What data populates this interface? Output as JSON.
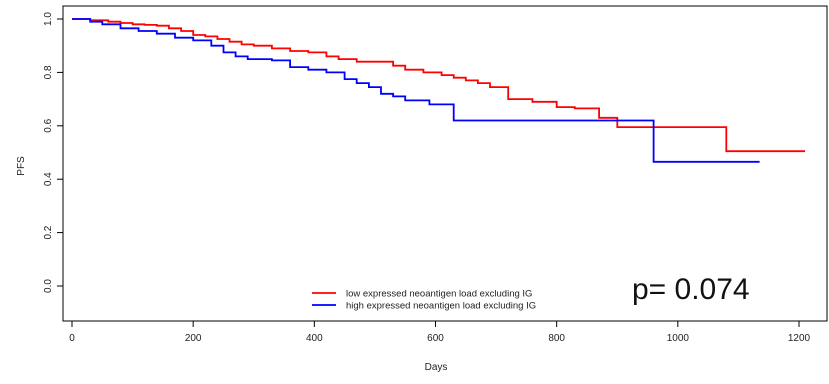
{
  "chart_data": {
    "type": "line",
    "title": "",
    "xlabel": "Days",
    "ylabel": "PFS",
    "xlim": [
      0,
      1230
    ],
    "ylim": [
      -0.03,
      1.03
    ],
    "xticks": [
      0,
      200,
      400,
      600,
      800,
      1000,
      1200
    ],
    "yticks": [
      0.0,
      0.2,
      0.4,
      0.6,
      0.8,
      1.0
    ],
    "xtick_labels": [
      "0",
      "200",
      "400",
      "600",
      "800",
      "1000",
      "1200"
    ],
    "ytick_labels": [
      "0.0",
      "0.2",
      "0.4",
      "0.6",
      "0.8",
      "1.0"
    ],
    "grid": false,
    "legend_position": "bottom-center",
    "annotation": "p= 0.074",
    "series": [
      {
        "name": "low expressed neoantigen load excluding IG",
        "color": "#ff0000",
        "step": true,
        "points": [
          [
            0,
            1.0
          ],
          [
            30,
            0.995
          ],
          [
            60,
            0.99
          ],
          [
            80,
            0.985
          ],
          [
            100,
            0.98
          ],
          [
            120,
            0.978
          ],
          [
            140,
            0.975
          ],
          [
            160,
            0.965
          ],
          [
            180,
            0.955
          ],
          [
            200,
            0.94
          ],
          [
            220,
            0.935
          ],
          [
            240,
            0.925
          ],
          [
            260,
            0.915
          ],
          [
            280,
            0.905
          ],
          [
            300,
            0.9
          ],
          [
            330,
            0.89
          ],
          [
            360,
            0.88
          ],
          [
            390,
            0.875
          ],
          [
            420,
            0.86
          ],
          [
            440,
            0.85
          ],
          [
            470,
            0.84
          ],
          [
            510,
            0.84
          ],
          [
            530,
            0.825
          ],
          [
            550,
            0.81
          ],
          [
            580,
            0.8
          ],
          [
            610,
            0.79
          ],
          [
            630,
            0.78
          ],
          [
            650,
            0.77
          ],
          [
            670,
            0.76
          ],
          [
            690,
            0.745
          ],
          [
            720,
            0.7
          ],
          [
            760,
            0.69
          ],
          [
            800,
            0.67
          ],
          [
            830,
            0.665
          ],
          [
            870,
            0.63
          ],
          [
            900,
            0.595
          ],
          [
            960,
            0.595
          ],
          [
            1000,
            0.595
          ],
          [
            1080,
            0.505
          ],
          [
            1210,
            0.505
          ]
        ]
      },
      {
        "name": "high expressed neoantigen load excluding IG",
        "color": "#0000ff",
        "step": true,
        "points": [
          [
            0,
            1.0
          ],
          [
            30,
            0.99
          ],
          [
            50,
            0.98
          ],
          [
            80,
            0.965
          ],
          [
            110,
            0.955
          ],
          [
            140,
            0.945
          ],
          [
            170,
            0.93
          ],
          [
            200,
            0.92
          ],
          [
            230,
            0.9
          ],
          [
            250,
            0.875
          ],
          [
            270,
            0.86
          ],
          [
            290,
            0.85
          ],
          [
            330,
            0.845
          ],
          [
            360,
            0.82
          ],
          [
            390,
            0.81
          ],
          [
            420,
            0.8
          ],
          [
            450,
            0.775
          ],
          [
            470,
            0.76
          ],
          [
            490,
            0.745
          ],
          [
            510,
            0.72
          ],
          [
            530,
            0.71
          ],
          [
            550,
            0.695
          ],
          [
            590,
            0.68
          ],
          [
            630,
            0.62
          ],
          [
            700,
            0.62
          ],
          [
            800,
            0.62
          ],
          [
            960,
            0.465
          ],
          [
            1135,
            0.465
          ]
        ]
      }
    ]
  }
}
